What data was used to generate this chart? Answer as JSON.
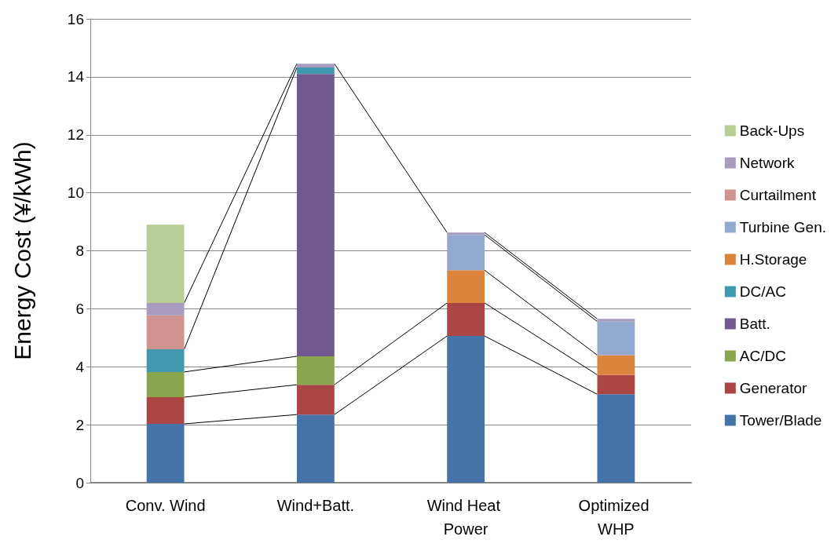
{
  "chart_data": {
    "type": "bar",
    "stacked": true,
    "ylabel": "Energy Cost (¥/kWh)",
    "categories": [
      "Conv. Wind",
      "Wind+Batt.",
      "Wind Heat Power",
      "Optimized WHP"
    ],
    "ylim": [
      0,
      16
    ],
    "yticks": [
      0,
      2,
      4,
      6,
      8,
      10,
      12,
      14,
      16
    ],
    "grid": "y",
    "legend": "right",
    "series": [
      {
        "name": "Tower/Blade",
        "color": "#4572a7",
        "values": [
          2.03,
          2.35,
          5.06,
          3.05
        ]
      },
      {
        "name": "Generator",
        "color": "#aa4643",
        "values": [
          0.92,
          1.03,
          1.14,
          0.67
        ]
      },
      {
        "name": "AC/DC",
        "color": "#89a54e",
        "values": [
          0.87,
          0.98,
          null,
          null
        ]
      },
      {
        "name": "Batt.",
        "color": "#71588f",
        "values": [
          null,
          9.74,
          null,
          null
        ]
      },
      {
        "name": "DC/AC",
        "color": "#4198af",
        "values": [
          0.78,
          0.22,
          null,
          null
        ]
      },
      {
        "name": "H.Storage",
        "color": "#db843d",
        "values": [
          null,
          null,
          1.13,
          0.68
        ]
      },
      {
        "name": "Turbine Gen.",
        "color": "#93a9cf",
        "values": [
          null,
          null,
          1.22,
          1.16
        ]
      },
      {
        "name": "Curtailment",
        "color": "#d19392",
        "values": [
          1.17,
          null,
          null,
          null
        ]
      },
      {
        "name": "Network",
        "color": "#a99bbd",
        "values": [
          0.43,
          0.13,
          0.08,
          0.09
        ]
      },
      {
        "name": "Back-Ups",
        "color": "#b9cd96",
        "values": [
          2.7,
          null,
          null,
          null
        ]
      }
    ]
  }
}
